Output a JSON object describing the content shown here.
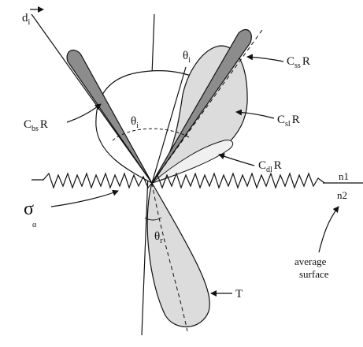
{
  "diagram": {
    "incident_direction": {
      "main": "d",
      "sub": "i"
    },
    "theta_i": {
      "main": "θ",
      "sub": "i"
    },
    "theta_sub_i": {
      "main": "θ",
      "sub": "i"
    },
    "specular_spike": {
      "main": "C",
      "sub": "ss",
      "tail": "R"
    },
    "specular_lobe": {
      "main": "C",
      "sub": "sl",
      "tail": "R"
    },
    "backscatter_spike": {
      "main": "C",
      "sub": "bs",
      "tail": "R"
    },
    "diffuse_lobe": {
      "main": "C",
      "sub": "dl",
      "tail": "R"
    },
    "sigma": {
      "main": "σ",
      "sub": "α"
    },
    "theta_r": {
      "main": "θ",
      "sub": "r"
    },
    "transmission": "T",
    "medium_1": "n1",
    "medium_2": "n2",
    "average_surface_line1": "average",
    "average_surface_line2": "surface"
  }
}
